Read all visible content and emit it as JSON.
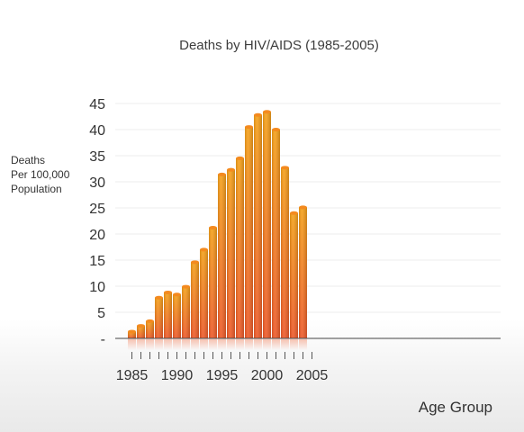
{
  "chart_data": {
    "type": "bar",
    "title": "Deaths by HIV/AIDS (1985-2005)",
    "ylabel": [
      "Deaths",
      "Per 100,000",
      "Population"
    ],
    "xlabel": "Age Group",
    "x": [
      1985,
      1986,
      1987,
      1988,
      1989,
      1990,
      1991,
      1992,
      1993,
      1994,
      1995,
      1996,
      1997,
      1998,
      1999,
      2000,
      2001,
      2002,
      2003,
      2004,
      2005
    ],
    "values": [
      1.3,
      2.4,
      3.3,
      7.8,
      8.8,
      8.4,
      9.9,
      14.6,
      17.0,
      21.2,
      31.4,
      32.3,
      34.5,
      40.5,
      42.8,
      43.4,
      40.0,
      32.7,
      24.0,
      25.1,
      0
    ],
    "x_tick_labels": [
      "1985",
      "1990",
      "1995",
      "2000",
      "2005"
    ],
    "y_tick_labels": [
      "-",
      "5",
      "10",
      "15",
      "20",
      "25",
      "30",
      "35",
      "40",
      "45"
    ],
    "ylim": [
      0,
      45
    ],
    "grid": true,
    "bar_gradient": [
      "#f6a21a",
      "#ef5a2a"
    ]
  }
}
